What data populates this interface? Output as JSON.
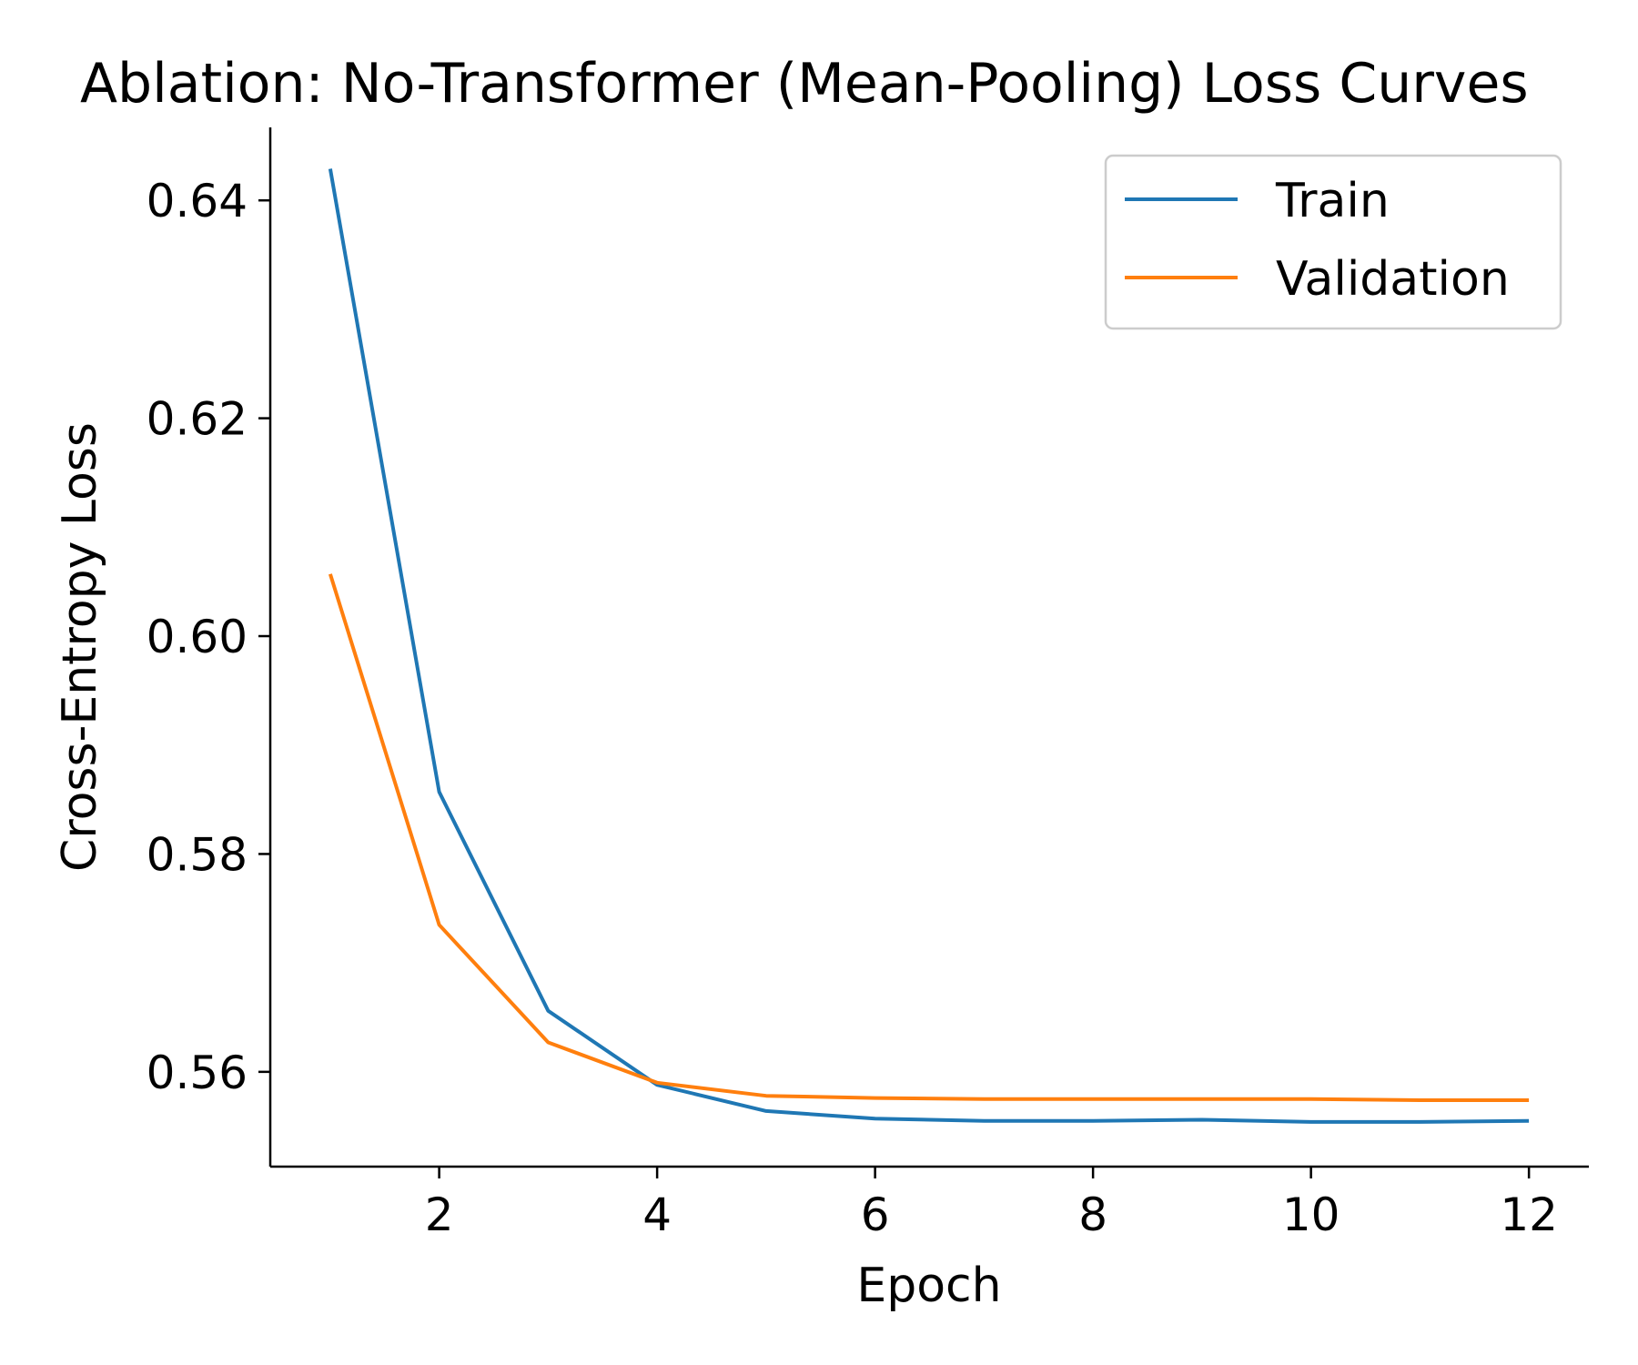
{
  "chart_data": {
    "type": "line",
    "title": "Ablation: No-Transformer (Mean-Pooling) Loss Curves",
    "xlabel": "Epoch",
    "ylabel": "Cross-Entropy Loss",
    "x": [
      1,
      2,
      3,
      4,
      5,
      6,
      7,
      8,
      9,
      10,
      11,
      12
    ],
    "xlim": [
      0.45,
      12.55
    ],
    "ylim": [
      0.5513,
      0.6467
    ],
    "xticks": [
      2,
      4,
      6,
      8,
      10,
      12
    ],
    "xtick_labels": [
      "2",
      "4",
      "6",
      "8",
      "10",
      "12"
    ],
    "yticks": [
      0.56,
      0.58,
      0.6,
      0.62,
      0.64
    ],
    "ytick_labels": [
      "0.56",
      "0.58",
      "0.60",
      "0.62",
      "0.64"
    ],
    "grid": false,
    "legend_position": "top-right",
    "series": [
      {
        "name": "Train",
        "color": "#1f77b4",
        "values": [
          0.6429,
          0.5857,
          0.5656,
          0.5588,
          0.5564,
          0.5557,
          0.5555,
          0.5555,
          0.5556,
          0.5554,
          0.5554,
          0.5555
        ]
      },
      {
        "name": "Validation",
        "color": "#ff7f0e",
        "values": [
          0.6057,
          0.5735,
          0.5627,
          0.559,
          0.5578,
          0.5576,
          0.5575,
          0.5575,
          0.5575,
          0.5575,
          0.5574,
          0.5574
        ]
      }
    ]
  }
}
